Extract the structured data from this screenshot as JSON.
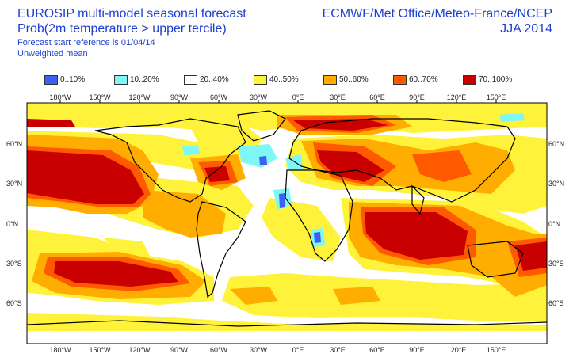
{
  "title": {
    "line1": "EUROSIP multi-model seasonal forecast",
    "line2": "Prob(2m temperature > upper tercile)",
    "line3": "Forecast start reference is 01/04/14",
    "line4": "Unweighted mean"
  },
  "source": {
    "line1": "ECMWF/Met Office/Meteo-France/NCEP",
    "line2": "JJA 2014"
  },
  "legend": [
    {
      "label": "0..10%",
      "color": "#3f5ff0"
    },
    {
      "label": "10..20%",
      "color": "#7ff7f7"
    },
    {
      "label": "20..40%",
      "color": "#ffffff"
    },
    {
      "label": "40..50%",
      "color": "#fff23a"
    },
    {
      "label": "50..60%",
      "color": "#ffad00"
    },
    {
      "label": "60..70%",
      "color": "#ff5a00"
    },
    {
      "label": "70..100%",
      "color": "#c80000"
    }
  ],
  "lon_labels_top": [
    "180°W",
    "150°W",
    "120°W",
    "90°W",
    "60°W",
    "30°W",
    "0°E",
    "30°E",
    "60°E",
    "90°E",
    "120°E",
    "150°E"
  ],
  "lon_labels_bottom": [
    "180°W",
    "150°W",
    "120°W",
    "90°W",
    "60°W",
    "30°W",
    "0°E",
    "30°E",
    "60°E",
    "90°E",
    "120°E",
    "150°E"
  ],
  "lat_labels_left": [
    "60°N",
    "30°N",
    "0°N",
    "30°S",
    "60°S"
  ],
  "lat_labels_right": [
    "60°N",
    "30°N",
    "0°N",
    "30°S",
    "60°S"
  ],
  "map": {
    "projection": "equirectangular",
    "lon_range": [
      -200,
      195
    ],
    "lat_range": [
      -87,
      90
    ],
    "background_category": "20..40%",
    "coastline_color": "#000000"
  }
}
